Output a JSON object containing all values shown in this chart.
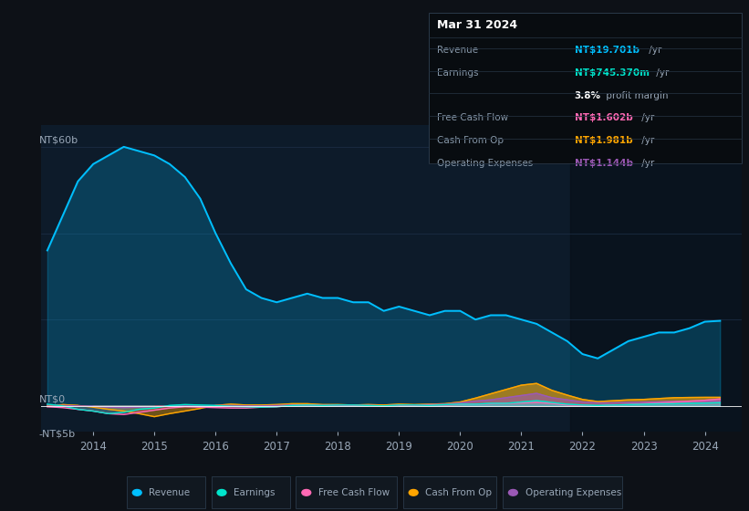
{
  "bg_color": "#0d1117",
  "plot_bg_color": "#0d1b2a",
  "text_color": "#9aa8b8",
  "grid_color": "#1e3048",
  "ylabel_text": "NT$60b",
  "y0_text": "NT$0",
  "yneg_text": "-NT$5b",
  "ylim": [
    -6,
    65
  ],
  "x_years": [
    2013.25,
    2013.5,
    2013.75,
    2014.0,
    2014.25,
    2014.5,
    2014.75,
    2015.0,
    2015.25,
    2015.5,
    2015.75,
    2016.0,
    2016.25,
    2016.5,
    2016.75,
    2017.0,
    2017.25,
    2017.5,
    2017.75,
    2018.0,
    2018.25,
    2018.5,
    2018.75,
    2019.0,
    2019.25,
    2019.5,
    2019.75,
    2020.0,
    2020.25,
    2020.5,
    2020.75,
    2021.0,
    2021.25,
    2021.5,
    2021.75,
    2022.0,
    2022.25,
    2022.5,
    2022.75,
    2023.0,
    2023.25,
    2023.5,
    2023.75,
    2024.0,
    2024.25
  ],
  "revenue": [
    36,
    44,
    52,
    56,
    58,
    60,
    59,
    58,
    56,
    53,
    48,
    40,
    33,
    27,
    25,
    24,
    25,
    26,
    25,
    25,
    24,
    24,
    22,
    23,
    22,
    21,
    22,
    22,
    20,
    21,
    21,
    20,
    19,
    17,
    15,
    12,
    11,
    13,
    15,
    16,
    17,
    17,
    18,
    19.5,
    19.701
  ],
  "earnings": [
    0.4,
    0.0,
    -0.8,
    -1.2,
    -1.8,
    -1.5,
    -0.8,
    -0.5,
    0.1,
    0.3,
    0.2,
    0.1,
    -0.1,
    -0.2,
    -0.3,
    -0.2,
    0.1,
    0.2,
    0.1,
    0.2,
    0.2,
    0.1,
    0.0,
    0.2,
    0.2,
    0.1,
    0.3,
    0.4,
    0.4,
    0.6,
    0.6,
    0.9,
    1.2,
    0.8,
    0.4,
    0.2,
    0.1,
    0.2,
    0.3,
    0.4,
    0.5,
    0.5,
    0.6,
    0.65,
    0.745
  ],
  "free_cash_flow": [
    -0.2,
    -0.4,
    -0.8,
    -1.2,
    -1.8,
    -2.0,
    -1.5,
    -1.0,
    -0.5,
    -0.2,
    -0.3,
    -0.4,
    -0.5,
    -0.5,
    -0.3,
    -0.2,
    0.1,
    0.2,
    0.1,
    0.2,
    0.1,
    0.1,
    0.0,
    0.1,
    0.1,
    0.2,
    0.2,
    0.3,
    0.4,
    0.5,
    0.6,
    0.7,
    0.8,
    0.6,
    0.2,
    0.1,
    0.0,
    0.2,
    0.3,
    0.5,
    0.7,
    0.9,
    1.1,
    1.3,
    1.602
  ],
  "cash_from_op": [
    0.0,
    0.3,
    0.1,
    -0.3,
    -0.8,
    -1.2,
    -1.8,
    -2.5,
    -1.8,
    -1.2,
    -0.6,
    0.1,
    0.4,
    0.2,
    0.2,
    0.3,
    0.5,
    0.5,
    0.3,
    0.3,
    0.2,
    0.3,
    0.2,
    0.4,
    0.3,
    0.4,
    0.5,
    0.9,
    1.8,
    2.8,
    3.8,
    4.8,
    5.2,
    3.6,
    2.5,
    1.5,
    1.0,
    1.2,
    1.4,
    1.5,
    1.7,
    1.9,
    1.95,
    1.98,
    1.981
  ],
  "operating_expenses": [
    0.2,
    0.1,
    0.0,
    -0.1,
    -0.3,
    -0.4,
    -0.3,
    -0.2,
    -0.1,
    0.0,
    0.0,
    0.1,
    0.1,
    0.0,
    0.0,
    0.1,
    0.2,
    0.2,
    0.1,
    0.1,
    0.1,
    0.1,
    0.0,
    0.2,
    0.2,
    0.3,
    0.4,
    0.7,
    1.1,
    1.4,
    1.9,
    2.4,
    2.9,
    1.9,
    1.4,
    0.9,
    0.7,
    0.7,
    0.8,
    0.9,
    0.95,
    1.05,
    1.1,
    1.1,
    1.144
  ],
  "revenue_color": "#00bfff",
  "earnings_color": "#00e5cc",
  "free_cash_flow_color": "#ff69b4",
  "cash_from_op_color": "#ffa500",
  "operating_expenses_color": "#9b59b6",
  "x_tick_labels": [
    "2014",
    "2015",
    "2016",
    "2017",
    "2018",
    "2019",
    "2020",
    "2021",
    "2022",
    "2023",
    "2024"
  ],
  "x_tick_positions": [
    2014,
    2015,
    2016,
    2017,
    2018,
    2019,
    2020,
    2021,
    2022,
    2023,
    2024
  ],
  "shade_x_start": 2021.8,
  "info_box_title": "Mar 31 2024",
  "info_rows": [
    {
      "label": "Revenue",
      "val_colored": "NT$19.701b",
      "val_rest": " /yr",
      "val_color": "#00bfff",
      "label_color": "#8899aa"
    },
    {
      "label": "Earnings",
      "val_colored": "NT$745.370m",
      "val_rest": " /yr",
      "val_color": "#00e5cc",
      "label_color": "#8899aa"
    },
    {
      "label": "",
      "val_colored": "3.8%",
      "val_rest": " profit margin",
      "val_color": "#ffffff",
      "label_color": "#8899aa",
      "bold_val": true
    },
    {
      "label": "Free Cash Flow",
      "val_colored": "NT$1.602b",
      "val_rest": " /yr",
      "val_color": "#ff69b4",
      "label_color": "#8899aa"
    },
    {
      "label": "Cash From Op",
      "val_colored": "NT$1.981b",
      "val_rest": " /yr",
      "val_color": "#ffa500",
      "label_color": "#8899aa"
    },
    {
      "label": "Operating Expenses",
      "val_colored": "NT$1.144b",
      "val_rest": " /yr",
      "val_color": "#9b59b6",
      "label_color": "#8899aa"
    }
  ],
  "legend_items": [
    {
      "label": "Revenue",
      "color": "#00bfff"
    },
    {
      "label": "Earnings",
      "color": "#00e5cc"
    },
    {
      "label": "Free Cash Flow",
      "color": "#ff69b4"
    },
    {
      "label": "Cash From Op",
      "color": "#ffa500"
    },
    {
      "label": "Operating Expenses",
      "color": "#9b59b6"
    }
  ]
}
